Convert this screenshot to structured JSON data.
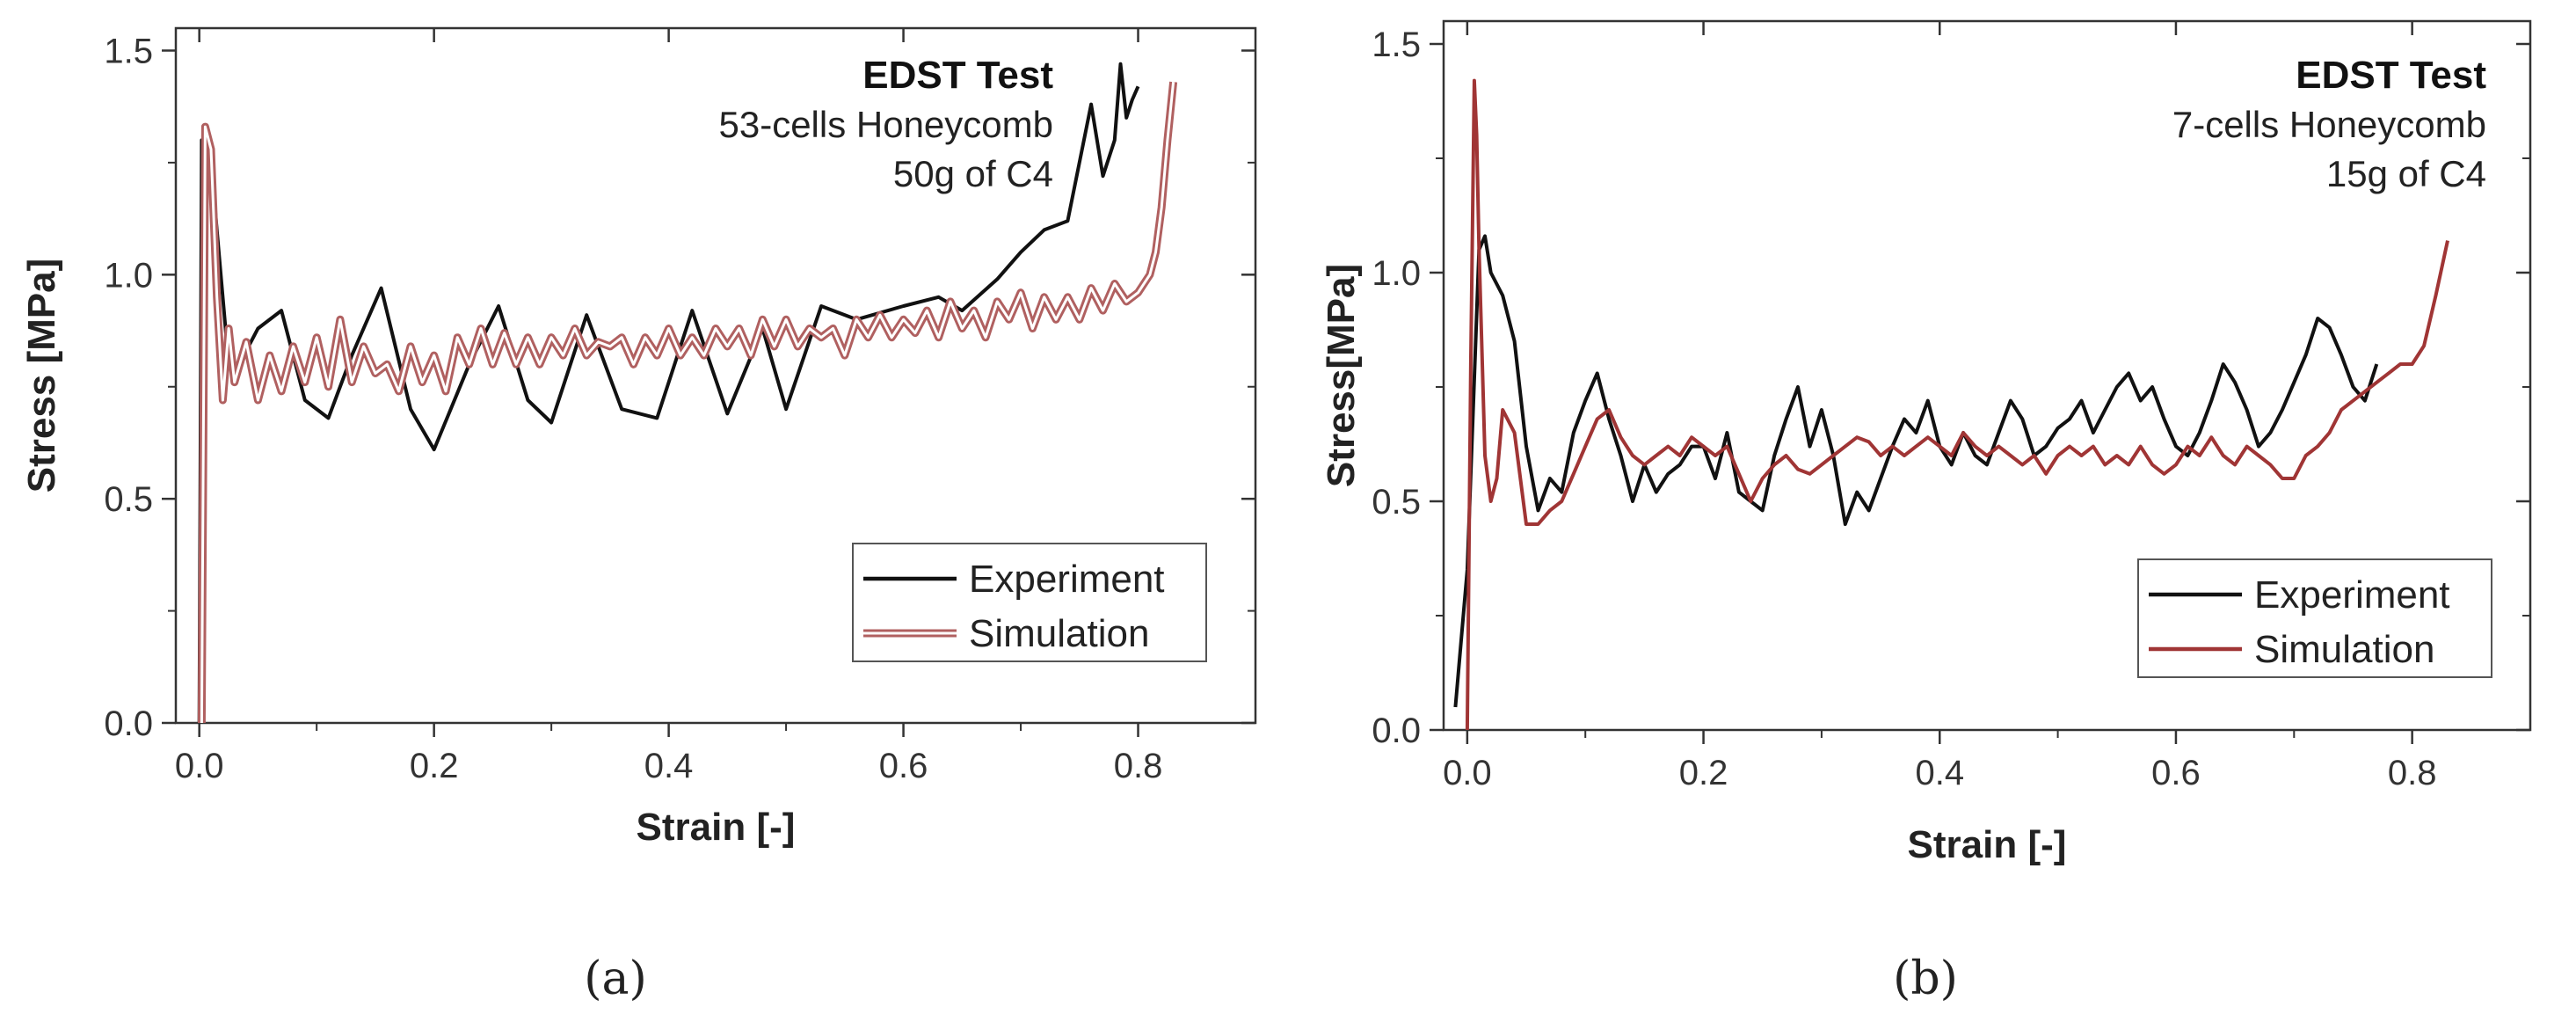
{
  "chart_data": [
    {
      "type": "line",
      "panel": "a",
      "caption": "(a)",
      "annotation_title": "EDST Test",
      "annotation_lines": [
        "53-cells Honeycomb",
        "50g of C4"
      ],
      "xlabel": "Strain [-]",
      "ylabel": "Stress [MPa]",
      "xlim": [
        -0.02,
        0.9
      ],
      "ylim": [
        0.0,
        1.55
      ],
      "xticks": [
        0.0,
        0.2,
        0.4,
        0.6,
        0.8
      ],
      "xtick_labels": [
        "0.0",
        "0.2",
        "0.4",
        "0.6",
        "0.8"
      ],
      "yticks": [
        0.0,
        0.5,
        1.0,
        1.5
      ],
      "ytick_labels": [
        "0.0",
        "0.5",
        "1.0",
        "1.5"
      ],
      "grid": false,
      "legend_position": "bottom-right",
      "series": [
        {
          "name": "Experiment",
          "color": "#111111",
          "style": "solid",
          "x": [
            0.0,
            0.002,
            0.005,
            0.01,
            0.015,
            0.02,
            0.025,
            0.03,
            0.05,
            0.07,
            0.09,
            0.11,
            0.13,
            0.155,
            0.18,
            0.2,
            0.23,
            0.255,
            0.28,
            0.3,
            0.33,
            0.36,
            0.39,
            0.42,
            0.45,
            0.48,
            0.5,
            0.53,
            0.56,
            0.6,
            0.63,
            0.65,
            0.68,
            0.7,
            0.72,
            0.74,
            0.76,
            0.77,
            0.78,
            0.785,
            0.79,
            0.795,
            0.8
          ],
          "y": [
            0.0,
            1.3,
            1.3,
            1.25,
            1.1,
            0.95,
            0.8,
            0.78,
            0.88,
            0.92,
            0.72,
            0.68,
            0.82,
            0.97,
            0.7,
            0.61,
            0.8,
            0.93,
            0.72,
            0.67,
            0.91,
            0.7,
            0.68,
            0.92,
            0.69,
            0.88,
            0.7,
            0.93,
            0.9,
            0.93,
            0.95,
            0.92,
            0.99,
            1.05,
            1.1,
            1.12,
            1.38,
            1.22,
            1.3,
            1.47,
            1.35,
            1.39,
            1.42
          ]
        },
        {
          "name": "Simulation",
          "color": "#b06060",
          "style": "double",
          "x": [
            0.002,
            0.005,
            0.01,
            0.015,
            0.02,
            0.025,
            0.03,
            0.04,
            0.05,
            0.06,
            0.07,
            0.08,
            0.09,
            0.1,
            0.11,
            0.12,
            0.13,
            0.14,
            0.15,
            0.16,
            0.17,
            0.18,
            0.19,
            0.2,
            0.21,
            0.22,
            0.23,
            0.24,
            0.25,
            0.26,
            0.27,
            0.28,
            0.29,
            0.3,
            0.31,
            0.32,
            0.33,
            0.34,
            0.35,
            0.36,
            0.37,
            0.38,
            0.39,
            0.4,
            0.41,
            0.42,
            0.43,
            0.44,
            0.45,
            0.46,
            0.47,
            0.48,
            0.49,
            0.5,
            0.51,
            0.52,
            0.53,
            0.54,
            0.55,
            0.56,
            0.57,
            0.58,
            0.59,
            0.6,
            0.61,
            0.62,
            0.63,
            0.64,
            0.65,
            0.66,
            0.67,
            0.68,
            0.69,
            0.7,
            0.71,
            0.72,
            0.73,
            0.74,
            0.75,
            0.76,
            0.77,
            0.78,
            0.79,
            0.8,
            0.81,
            0.815,
            0.82,
            0.825,
            0.83
          ],
          "y": [
            0.0,
            1.33,
            1.28,
            0.95,
            0.72,
            0.88,
            0.76,
            0.85,
            0.72,
            0.82,
            0.74,
            0.84,
            0.76,
            0.86,
            0.75,
            0.9,
            0.76,
            0.84,
            0.78,
            0.8,
            0.74,
            0.84,
            0.76,
            0.82,
            0.74,
            0.86,
            0.8,
            0.88,
            0.8,
            0.87,
            0.8,
            0.86,
            0.8,
            0.86,
            0.82,
            0.88,
            0.82,
            0.85,
            0.84,
            0.86,
            0.8,
            0.86,
            0.82,
            0.88,
            0.82,
            0.86,
            0.82,
            0.88,
            0.84,
            0.88,
            0.82,
            0.9,
            0.84,
            0.9,
            0.84,
            0.88,
            0.86,
            0.88,
            0.82,
            0.9,
            0.86,
            0.91,
            0.86,
            0.9,
            0.87,
            0.92,
            0.86,
            0.94,
            0.88,
            0.92,
            0.86,
            0.94,
            0.9,
            0.96,
            0.88,
            0.95,
            0.9,
            0.95,
            0.9,
            0.97,
            0.92,
            0.98,
            0.94,
            0.96,
            1.0,
            1.05,
            1.15,
            1.3,
            1.43
          ]
        }
      ]
    },
    {
      "type": "line",
      "panel": "b",
      "caption": "(b)",
      "annotation_title": "EDST Test",
      "annotation_lines": [
        "7-cells Honeycomb",
        "15g of C4"
      ],
      "xlabel": "Strain [-]",
      "ylabel": "Stress[MPa]",
      "xlim": [
        -0.02,
        0.9
      ],
      "ylim": [
        0.0,
        1.55
      ],
      "xticks": [
        0.0,
        0.2,
        0.4,
        0.6,
        0.8
      ],
      "xtick_labels": [
        "0.0",
        "0.2",
        "0.4",
        "0.6",
        "0.8"
      ],
      "yticks": [
        0.0,
        0.5,
        1.0,
        1.5
      ],
      "ytick_labels": [
        "0.0",
        "0.5",
        "1.0",
        "1.5"
      ],
      "grid": false,
      "legend_position": "bottom-right",
      "series": [
        {
          "name": "Experiment",
          "color": "#111111",
          "style": "solid",
          "x": [
            -0.01,
            0.0,
            0.005,
            0.01,
            0.015,
            0.02,
            0.03,
            0.04,
            0.05,
            0.06,
            0.07,
            0.08,
            0.09,
            0.1,
            0.11,
            0.12,
            0.13,
            0.14,
            0.15,
            0.16,
            0.17,
            0.18,
            0.19,
            0.2,
            0.21,
            0.22,
            0.23,
            0.24,
            0.25,
            0.26,
            0.27,
            0.28,
            0.29,
            0.3,
            0.31,
            0.32,
            0.33,
            0.34,
            0.35,
            0.36,
            0.37,
            0.38,
            0.39,
            0.4,
            0.41,
            0.42,
            0.43,
            0.44,
            0.45,
            0.46,
            0.47,
            0.48,
            0.49,
            0.5,
            0.51,
            0.52,
            0.53,
            0.54,
            0.55,
            0.56,
            0.57,
            0.58,
            0.59,
            0.6,
            0.61,
            0.62,
            0.63,
            0.64,
            0.65,
            0.66,
            0.67,
            0.68,
            0.69,
            0.7,
            0.71,
            0.72,
            0.73,
            0.74,
            0.75,
            0.76,
            0.77
          ],
          "y": [
            0.05,
            0.35,
            0.7,
            1.05,
            1.08,
            1.0,
            0.95,
            0.85,
            0.62,
            0.48,
            0.55,
            0.52,
            0.65,
            0.72,
            0.78,
            0.68,
            0.6,
            0.5,
            0.58,
            0.52,
            0.56,
            0.58,
            0.62,
            0.62,
            0.55,
            0.65,
            0.52,
            0.5,
            0.48,
            0.6,
            0.68,
            0.75,
            0.62,
            0.7,
            0.6,
            0.45,
            0.52,
            0.48,
            0.55,
            0.62,
            0.68,
            0.65,
            0.72,
            0.62,
            0.58,
            0.65,
            0.6,
            0.58,
            0.65,
            0.72,
            0.68,
            0.6,
            0.62,
            0.66,
            0.68,
            0.72,
            0.65,
            0.7,
            0.75,
            0.78,
            0.72,
            0.75,
            0.68,
            0.62,
            0.6,
            0.65,
            0.72,
            0.8,
            0.76,
            0.7,
            0.62,
            0.65,
            0.7,
            0.76,
            0.82,
            0.9,
            0.88,
            0.82,
            0.75,
            0.72,
            0.8
          ]
        },
        {
          "name": "Simulation",
          "color": "#a03535",
          "style": "solid",
          "x": [
            0.0,
            0.003,
            0.006,
            0.008,
            0.01,
            0.015,
            0.02,
            0.025,
            0.03,
            0.04,
            0.05,
            0.06,
            0.07,
            0.08,
            0.09,
            0.1,
            0.11,
            0.12,
            0.13,
            0.14,
            0.15,
            0.16,
            0.17,
            0.18,
            0.19,
            0.2,
            0.21,
            0.22,
            0.23,
            0.24,
            0.25,
            0.26,
            0.27,
            0.28,
            0.29,
            0.3,
            0.31,
            0.32,
            0.33,
            0.34,
            0.35,
            0.36,
            0.37,
            0.38,
            0.39,
            0.4,
            0.41,
            0.42,
            0.43,
            0.44,
            0.45,
            0.46,
            0.47,
            0.48,
            0.49,
            0.5,
            0.51,
            0.52,
            0.53,
            0.54,
            0.55,
            0.56,
            0.57,
            0.58,
            0.59,
            0.6,
            0.61,
            0.62,
            0.63,
            0.64,
            0.65,
            0.66,
            0.67,
            0.68,
            0.69,
            0.7,
            0.71,
            0.72,
            0.73,
            0.74,
            0.75,
            0.76,
            0.77,
            0.78,
            0.79,
            0.8,
            0.81,
            0.82,
            0.83
          ],
          "y": [
            0.0,
            0.8,
            1.42,
            1.3,
            1.05,
            0.6,
            0.5,
            0.55,
            0.7,
            0.65,
            0.45,
            0.45,
            0.48,
            0.5,
            0.56,
            0.62,
            0.68,
            0.7,
            0.64,
            0.6,
            0.58,
            0.6,
            0.62,
            0.6,
            0.64,
            0.62,
            0.6,
            0.62,
            0.56,
            0.5,
            0.55,
            0.58,
            0.6,
            0.57,
            0.56,
            0.58,
            0.6,
            0.62,
            0.64,
            0.63,
            0.6,
            0.62,
            0.6,
            0.62,
            0.64,
            0.62,
            0.6,
            0.65,
            0.62,
            0.6,
            0.62,
            0.6,
            0.58,
            0.6,
            0.56,
            0.6,
            0.62,
            0.6,
            0.62,
            0.58,
            0.6,
            0.58,
            0.62,
            0.58,
            0.56,
            0.58,
            0.62,
            0.6,
            0.64,
            0.6,
            0.58,
            0.62,
            0.6,
            0.58,
            0.55,
            0.55,
            0.6,
            0.62,
            0.65,
            0.7,
            0.72,
            0.74,
            0.76,
            0.78,
            0.8,
            0.8,
            0.84,
            0.95,
            1.07
          ]
        }
      ]
    }
  ]
}
